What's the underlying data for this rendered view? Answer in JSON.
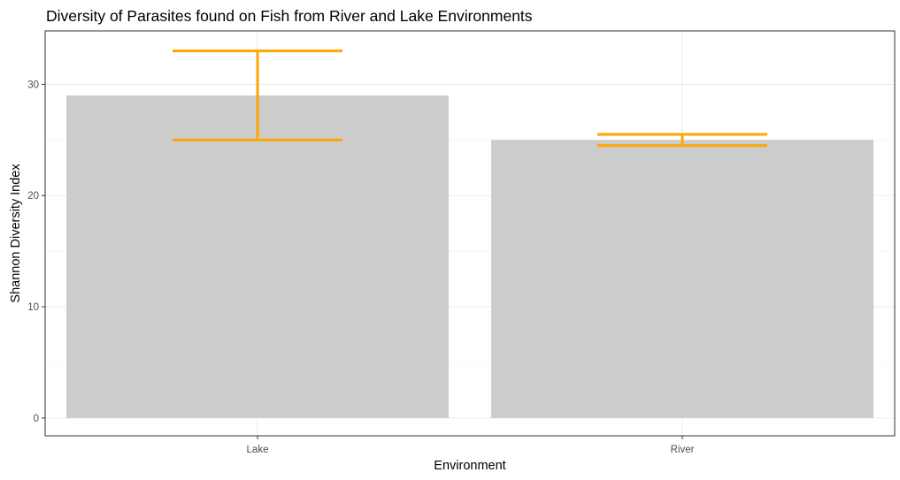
{
  "chart_data": {
    "type": "bar",
    "title": "Diversity of Parasites found on Fish from River and Lake Environments",
    "xlabel": "Environment",
    "ylabel": "Shannon Diversity Index",
    "categories": [
      "Lake",
      "River"
    ],
    "values": [
      29,
      25
    ],
    "error_bars": [
      {
        "category": "Lake",
        "lower": 25,
        "upper": 33
      },
      {
        "category": "River",
        "lower": 24.5,
        "upper": 25.5
      }
    ],
    "ylim": [
      -1.6,
      34.8
    ],
    "yticks": [
      0,
      10,
      20,
      30
    ],
    "ytick_labels": [
      "0",
      "10",
      "20",
      "30"
    ],
    "grid": true,
    "legend": "none",
    "colors": {
      "bar_fill": "#cccccc",
      "error_bar": "#ffa500",
      "grid_major": "#ebebeb",
      "grid_minor": "#f5f5f5",
      "panel_border": "#333333",
      "tick_text": "#4d4d4d"
    }
  }
}
